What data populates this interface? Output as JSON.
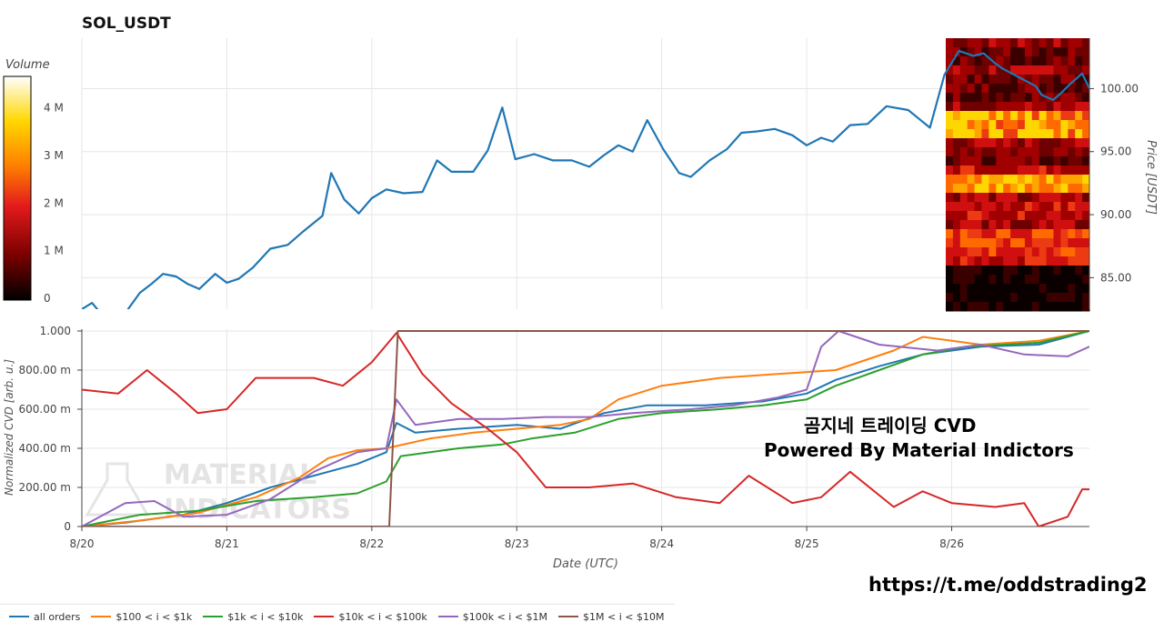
{
  "title": "SOL_USDT",
  "colorbar": {
    "label": "Volume",
    "ticks": [
      {
        "value": 0,
        "label": "0"
      },
      {
        "value": 1,
        "label": "1 M"
      },
      {
        "value": 2,
        "label": "2 M"
      },
      {
        "value": 3,
        "label": "3 M"
      },
      {
        "value": 4,
        "label": "4 M"
      }
    ],
    "colors": [
      "#000000",
      "#7a0000",
      "#e31a1c",
      "#ff7f00",
      "#ffd700",
      "#ffffd9",
      "#ffffff"
    ]
  },
  "watermark": {
    "line1": "곰지네 트레이딩 CVD",
    "line2": "Powered By Material Indictors",
    "logo_text": "MATERIAL INDICATORS",
    "link": "https://t.me/oddstrading2"
  },
  "legend": [
    {
      "name": "all orders",
      "color": "#1f77b4"
    },
    {
      "name": "$100 < i < $1k",
      "color": "#ff7f0e"
    },
    {
      "name": "$1k < i < $10k",
      "color": "#2ca02c"
    },
    {
      "name": "$10k < i < $100k",
      "color": "#d62728"
    },
    {
      "name": "$100k < i < $1M",
      "color": "#9467bd"
    },
    {
      "name": "$1M < i < $10M",
      "color": "#8c564b"
    }
  ],
  "chart_data": [
    {
      "type": "line",
      "title": "SOL_USDT",
      "ylabel": "Price [USDT]",
      "ylim": [
        82.5,
        104
      ],
      "yticks": [
        {
          "value": 85,
          "label": "85.00"
        },
        {
          "value": 90,
          "label": "90.00"
        },
        {
          "value": 95,
          "label": "95.00"
        },
        {
          "value": 100,
          "label": "100.00"
        }
      ],
      "xlim": [
        0,
        6.95
      ],
      "grid": true,
      "series": [
        {
          "color": "#1f77b4",
          "values": [
            [
              0.0,
              82.5
            ],
            [
              0.07,
              83.0
            ],
            [
              0.15,
              81.9
            ],
            [
              0.23,
              81.6
            ],
            [
              0.3,
              82.2
            ],
            [
              0.4,
              83.8
            ],
            [
              0.48,
              84.5
            ],
            [
              0.56,
              85.3
            ],
            [
              0.65,
              85.1
            ],
            [
              0.73,
              84.5
            ],
            [
              0.81,
              84.1
            ],
            [
              0.92,
              85.3
            ],
            [
              1.0,
              84.6
            ],
            [
              1.08,
              84.9
            ],
            [
              1.18,
              85.8
            ],
            [
              1.3,
              87.3
            ],
            [
              1.42,
              87.6
            ],
            [
              1.53,
              88.7
            ],
            [
              1.66,
              89.9
            ],
            [
              1.72,
              93.3
            ],
            [
              1.81,
              91.2
            ],
            [
              1.91,
              90.1
            ],
            [
              2.0,
              91.3
            ],
            [
              2.1,
              92.0
            ],
            [
              2.22,
              91.7
            ],
            [
              2.35,
              91.8
            ],
            [
              2.45,
              94.3
            ],
            [
              2.55,
              93.4
            ],
            [
              2.7,
              93.4
            ],
            [
              2.8,
              95.1
            ],
            [
              2.9,
              98.5
            ],
            [
              2.99,
              94.4
            ],
            [
              3.12,
              94.8
            ],
            [
              3.25,
              94.3
            ],
            [
              3.38,
              94.3
            ],
            [
              3.5,
              93.8
            ],
            [
              3.6,
              94.7
            ],
            [
              3.7,
              95.5
            ],
            [
              3.8,
              95.0
            ],
            [
              3.9,
              97.5
            ],
            [
              4.01,
              95.2
            ],
            [
              4.12,
              93.3
            ],
            [
              4.2,
              93.0
            ],
            [
              4.33,
              94.3
            ],
            [
              4.45,
              95.2
            ],
            [
              4.55,
              96.5
            ],
            [
              4.65,
              96.6
            ],
            [
              4.78,
              96.8
            ],
            [
              4.9,
              96.3
            ],
            [
              5.0,
              95.5
            ],
            [
              5.1,
              96.1
            ],
            [
              5.18,
              95.8
            ],
            [
              5.3,
              97.1
            ],
            [
              5.42,
              97.2
            ],
            [
              5.55,
              98.6
            ],
            [
              5.7,
              98.3
            ],
            [
              5.85,
              96.9
            ],
            [
              5.95,
              101.1
            ],
            [
              6.05,
              103.0
            ],
            [
              6.15,
              102.6
            ],
            [
              6.22,
              102.8
            ],
            [
              6.3,
              102.0
            ],
            [
              6.35,
              101.6
            ],
            [
              6.48,
              100.8
            ],
            [
              6.58,
              100.2
            ],
            [
              6.62,
              99.5
            ],
            [
              6.7,
              99.1
            ],
            [
              6.75,
              99.6
            ],
            [
              6.82,
              100.4
            ],
            [
              6.9,
              101.2
            ],
            [
              6.95,
              100.0
            ]
          ]
        }
      ]
    },
    {
      "type": "line",
      "xlabel": "Date (UTC)",
      "ylabel": "Normalized CVD [arb. u.]",
      "ylim": [
        0,
        1.0
      ],
      "yticks": [
        {
          "value": 0,
          "label": "0"
        },
        {
          "value": 0.2,
          "label": "200.00 m"
        },
        {
          "value": 0.4,
          "label": "400.00 m"
        },
        {
          "value": 0.6,
          "label": "600.00 m"
        },
        {
          "value": 0.8,
          "label": "800.00 m"
        },
        {
          "value": 1.0,
          "label": "1.000"
        }
      ],
      "xlim": [
        0,
        6.95
      ],
      "xticks": [
        {
          "value": 0,
          "label": "8/20"
        },
        {
          "value": 1,
          "label": "8/21"
        },
        {
          "value": 2,
          "label": "8/22"
        },
        {
          "value": 3,
          "label": "8/23"
        },
        {
          "value": 4,
          "label": "8/24"
        },
        {
          "value": 5,
          "label": "8/25"
        },
        {
          "value": 6,
          "label": "8/26"
        }
      ],
      "grid": true,
      "series": [
        {
          "name": "all orders",
          "color": "#1f77b4",
          "values": [
            [
              0,
              0.0
            ],
            [
              0.3,
              0.02
            ],
            [
              0.7,
              0.06
            ],
            [
              1.0,
              0.12
            ],
            [
              1.3,
              0.2
            ],
            [
              1.6,
              0.26
            ],
            [
              1.9,
              0.32
            ],
            [
              2.1,
              0.38
            ],
            [
              2.17,
              0.53
            ],
            [
              2.3,
              0.48
            ],
            [
              2.6,
              0.5
            ],
            [
              3.0,
              0.52
            ],
            [
              3.3,
              0.5
            ],
            [
              3.6,
              0.58
            ],
            [
              3.9,
              0.62
            ],
            [
              4.3,
              0.62
            ],
            [
              4.7,
              0.64
            ],
            [
              5.0,
              0.68
            ],
            [
              5.2,
              0.75
            ],
            [
              5.5,
              0.82
            ],
            [
              5.8,
              0.88
            ],
            [
              6.2,
              0.92
            ],
            [
              6.6,
              0.93
            ],
            [
              6.95,
              1.0
            ]
          ]
        },
        {
          "name": "$100 < i < $1k",
          "color": "#ff7f0e",
          "values": [
            [
              0,
              0.0
            ],
            [
              0.4,
              0.03
            ],
            [
              0.8,
              0.07
            ],
            [
              1.2,
              0.15
            ],
            [
              1.5,
              0.25
            ],
            [
              1.7,
              0.35
            ],
            [
              1.9,
              0.39
            ],
            [
              2.1,
              0.4
            ],
            [
              2.4,
              0.45
            ],
            [
              2.7,
              0.48
            ],
            [
              3.0,
              0.5
            ],
            [
              3.3,
              0.52
            ],
            [
              3.5,
              0.55
            ],
            [
              3.7,
              0.65
            ],
            [
              4.0,
              0.72
            ],
            [
              4.4,
              0.76
            ],
            [
              4.8,
              0.78
            ],
            [
              5.2,
              0.8
            ],
            [
              5.6,
              0.9
            ],
            [
              5.8,
              0.97
            ],
            [
              6.2,
              0.93
            ],
            [
              6.6,
              0.95
            ],
            [
              6.95,
              1.0
            ]
          ]
        },
        {
          "name": "$1k < i < $10k",
          "color": "#2ca02c",
          "values": [
            [
              0,
              0.0
            ],
            [
              0.4,
              0.06
            ],
            [
              0.8,
              0.08
            ],
            [
              1.2,
              0.13
            ],
            [
              1.6,
              0.15
            ],
            [
              1.9,
              0.17
            ],
            [
              2.1,
              0.23
            ],
            [
              2.2,
              0.36
            ],
            [
              2.6,
              0.4
            ],
            [
              2.9,
              0.42
            ],
            [
              3.1,
              0.45
            ],
            [
              3.4,
              0.48
            ],
            [
              3.7,
              0.55
            ],
            [
              4.0,
              0.58
            ],
            [
              4.4,
              0.6
            ],
            [
              4.7,
              0.62
            ],
            [
              5.0,
              0.65
            ],
            [
              5.2,
              0.72
            ],
            [
              5.5,
              0.8
            ],
            [
              5.8,
              0.88
            ],
            [
              6.1,
              0.92
            ],
            [
              6.6,
              0.94
            ],
            [
              6.95,
              1.0
            ]
          ]
        },
        {
          "name": "$10k < i < $100k",
          "color": "#d62728",
          "values": [
            [
              0,
              0.7
            ],
            [
              0.25,
              0.68
            ],
            [
              0.45,
              0.8
            ],
            [
              0.65,
              0.68
            ],
            [
              0.8,
              0.58
            ],
            [
              1.0,
              0.6
            ],
            [
              1.2,
              0.76
            ],
            [
              1.4,
              0.76
            ],
            [
              1.6,
              0.76
            ],
            [
              1.8,
              0.72
            ],
            [
              2.0,
              0.84
            ],
            [
              2.17,
              0.99
            ],
            [
              2.35,
              0.78
            ],
            [
              2.55,
              0.63
            ],
            [
              2.8,
              0.5
            ],
            [
              3.0,
              0.38
            ],
            [
              3.2,
              0.2
            ],
            [
              3.5,
              0.2
            ],
            [
              3.8,
              0.22
            ],
            [
              4.1,
              0.15
            ],
            [
              4.4,
              0.12
            ],
            [
              4.6,
              0.26
            ],
            [
              4.9,
              0.12
            ],
            [
              5.1,
              0.15
            ],
            [
              5.3,
              0.28
            ],
            [
              5.6,
              0.1
            ],
            [
              5.8,
              0.18
            ],
            [
              6.0,
              0.12
            ],
            [
              6.3,
              0.1
            ],
            [
              6.5,
              0.12
            ],
            [
              6.6,
              0.0
            ],
            [
              6.8,
              0.05
            ],
            [
              6.9,
              0.19
            ],
            [
              6.95,
              0.19
            ]
          ]
        },
        {
          "name": "$100k < i < $1M",
          "color": "#9467bd",
          "values": [
            [
              0,
              0.0
            ],
            [
              0.3,
              0.12
            ],
            [
              0.5,
              0.13
            ],
            [
              0.7,
              0.05
            ],
            [
              1.0,
              0.06
            ],
            [
              1.3,
              0.14
            ],
            [
              1.6,
              0.28
            ],
            [
              1.9,
              0.38
            ],
            [
              2.1,
              0.4
            ],
            [
              2.17,
              0.65
            ],
            [
              2.3,
              0.52
            ],
            [
              2.6,
              0.55
            ],
            [
              2.9,
              0.55
            ],
            [
              3.2,
              0.56
            ],
            [
              3.5,
              0.56
            ],
            [
              3.8,
              0.58
            ],
            [
              4.2,
              0.6
            ],
            [
              4.5,
              0.62
            ],
            [
              4.8,
              0.66
            ],
            [
              5.0,
              0.7
            ],
            [
              5.1,
              0.92
            ],
            [
              5.22,
              1.0
            ],
            [
              5.5,
              0.93
            ],
            [
              5.9,
              0.9
            ],
            [
              6.2,
              0.93
            ],
            [
              6.5,
              0.88
            ],
            [
              6.8,
              0.87
            ],
            [
              6.95,
              0.92
            ]
          ]
        },
        {
          "name": "$1M < i < $10M",
          "color": "#8c564b",
          "values": [
            [
              0,
              0.0
            ],
            [
              2.12,
              0.0
            ],
            [
              2.18,
              1.0
            ],
            [
              6.95,
              1.0
            ]
          ]
        }
      ]
    }
  ]
}
